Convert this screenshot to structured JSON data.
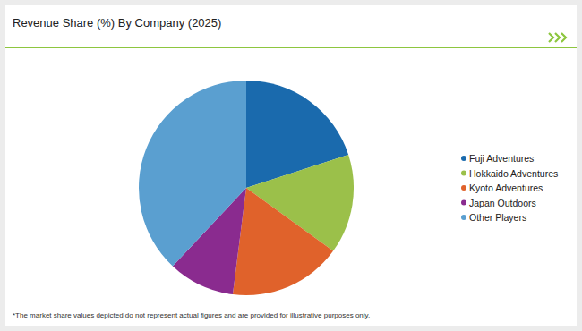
{
  "chart_data": {
    "type": "pie",
    "title": "Revenue Share (%) By Company (2025)",
    "categories": [
      "Fuji Adventures",
      "Hokkaido Adventures",
      "Kyoto Adventures",
      "Japan Outdoors",
      "Other Players"
    ],
    "values": [
      20,
      15,
      17,
      10,
      38
    ],
    "colors": [
      "#1a6aad",
      "#9bc04a",
      "#e0622b",
      "#8a2b8f",
      "#5a9fd0"
    ],
    "legend": "right",
    "annotations": [
      "*The market share values depicted do not represent actual figures and are provided for illustrative purposes only."
    ]
  }
}
